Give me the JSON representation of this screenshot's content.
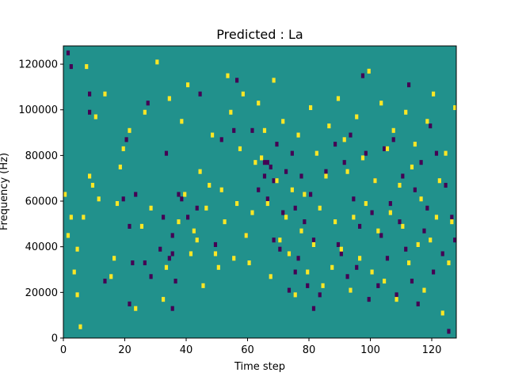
{
  "chart_data": {
    "type": "heatmap",
    "title": "Predicted : La",
    "xlabel": "Time step",
    "ylabel": "Frequency (Hz)",
    "xlim": [
      0,
      128
    ],
    "ylim": [
      0,
      128000
    ],
    "xticks": [
      0,
      20,
      40,
      60,
      80,
      100,
      120
    ],
    "yticks": [
      0,
      20000,
      40000,
      60000,
      80000,
      100000,
      120000
    ],
    "n_time_steps": 128,
    "n_freq_bins": 64,
    "freq_bin_width": 2000,
    "levels": {
      "low": 0,
      "mid": 1,
      "high": 2
    },
    "colormap": "viridis",
    "colors": {
      "low": "#440154",
      "mid": "#21918c",
      "high": "#fde725"
    },
    "background_level": 1,
    "low_cells": [
      [
        3,
        59
      ],
      [
        2,
        62
      ],
      [
        9,
        53
      ],
      [
        9,
        49
      ],
      [
        14,
        12
      ],
      [
        20,
        30
      ],
      [
        21,
        43
      ],
      [
        22,
        7
      ],
      [
        22,
        24
      ],
      [
        23,
        16
      ],
      [
        24,
        31
      ],
      [
        27,
        16
      ],
      [
        28,
        51
      ],
      [
        29,
        13
      ],
      [
        32,
        19
      ],
      [
        33,
        26
      ],
      [
        34,
        40
      ],
      [
        35,
        17
      ],
      [
        36,
        22
      ],
      [
        36,
        18
      ],
      [
        36,
        6
      ],
      [
        37,
        12
      ],
      [
        38,
        31
      ],
      [
        39,
        30
      ],
      [
        41,
        26
      ],
      [
        44,
        28
      ],
      [
        45,
        53
      ],
      [
        50,
        20
      ],
      [
        52,
        43
      ],
      [
        56,
        45
      ],
      [
        57,
        56
      ],
      [
        60,
        22
      ],
      [
        62,
        45
      ],
      [
        64,
        32
      ],
      [
        66,
        35
      ],
      [
        66,
        38
      ],
      [
        67,
        38
      ],
      [
        67,
        30
      ],
      [
        68,
        37
      ],
      [
        69,
        34
      ],
      [
        69,
        21
      ],
      [
        70,
        42
      ],
      [
        71,
        19
      ],
      [
        72,
        27
      ],
      [
        73,
        36
      ],
      [
        74,
        10
      ],
      [
        75,
        40
      ],
      [
        76,
        14
      ],
      [
        76,
        28
      ],
      [
        77,
        17
      ],
      [
        78,
        35
      ],
      [
        79,
        25
      ],
      [
        80,
        11
      ],
      [
        81,
        31
      ],
      [
        82,
        6
      ],
      [
        82,
        21
      ],
      [
        84,
        9
      ],
      [
        86,
        36
      ],
      [
        89,
        42
      ],
      [
        90,
        20
      ],
      [
        91,
        18
      ],
      [
        92,
        38
      ],
      [
        93,
        13
      ],
      [
        94,
        44
      ],
      [
        95,
        30
      ],
      [
        96,
        15
      ],
      [
        97,
        24
      ],
      [
        98,
        57
      ],
      [
        99,
        40
      ],
      [
        100,
        8
      ],
      [
        101,
        27
      ],
      [
        102,
        34
      ],
      [
        103,
        11
      ],
      [
        104,
        22
      ],
      [
        105,
        41
      ],
      [
        106,
        17
      ],
      [
        107,
        29
      ],
      [
        108,
        43
      ],
      [
        109,
        9
      ],
      [
        110,
        25
      ],
      [
        111,
        35
      ],
      [
        112,
        19
      ],
      [
        113,
        55
      ],
      [
        114,
        12
      ],
      [
        115,
        32
      ],
      [
        116,
        7
      ],
      [
        117,
        38
      ],
      [
        118,
        23
      ],
      [
        119,
        28
      ],
      [
        120,
        46
      ],
      [
        121,
        14
      ],
      [
        122,
        40
      ],
      [
        124,
        18
      ],
      [
        125,
        33
      ],
      [
        126,
        1
      ],
      [
        127,
        26
      ],
      [
        128,
        21
      ]
    ],
    "high_cells": [
      [
        1,
        31
      ],
      [
        2,
        22
      ],
      [
        3,
        26
      ],
      [
        4,
        14
      ],
      [
        5,
        9
      ],
      [
        5,
        19
      ],
      [
        6,
        2
      ],
      [
        7,
        26
      ],
      [
        8,
        59
      ],
      [
        9,
        35
      ],
      [
        10,
        33
      ],
      [
        11,
        48
      ],
      [
        12,
        30
      ],
      [
        14,
        53
      ],
      [
        16,
        13
      ],
      [
        17,
        17
      ],
      [
        18,
        29
      ],
      [
        19,
        37
      ],
      [
        20,
        41
      ],
      [
        22,
        45
      ],
      [
        24,
        6
      ],
      [
        26,
        24
      ],
      [
        27,
        49
      ],
      [
        29,
        28
      ],
      [
        31,
        60
      ],
      [
        33,
        8
      ],
      [
        34,
        15
      ],
      [
        35,
        52
      ],
      [
        38,
        25
      ],
      [
        39,
        47
      ],
      [
        40,
        31
      ],
      [
        41,
        55
      ],
      [
        42,
        18
      ],
      [
        43,
        23
      ],
      [
        44,
        21
      ],
      [
        45,
        36
      ],
      [
        46,
        11
      ],
      [
        47,
        28
      ],
      [
        48,
        33
      ],
      [
        49,
        44
      ],
      [
        50,
        18
      ],
      [
        51,
        15
      ],
      [
        52,
        32
      ],
      [
        53,
        25
      ],
      [
        54,
        57
      ],
      [
        55,
        49
      ],
      [
        56,
        17
      ],
      [
        57,
        29
      ],
      [
        58,
        41
      ],
      [
        59,
        53
      ],
      [
        60,
        22
      ],
      [
        61,
        16
      ],
      [
        62,
        27
      ],
      [
        63,
        38
      ],
      [
        64,
        51
      ],
      [
        65,
        39
      ],
      [
        66,
        45
      ],
      [
        67,
        29
      ],
      [
        68,
        13
      ],
      [
        69,
        56
      ],
      [
        70,
        34
      ],
      [
        71,
        21
      ],
      [
        72,
        47
      ],
      [
        73,
        26
      ],
      [
        74,
        18
      ],
      [
        75,
        32
      ],
      [
        76,
        9
      ],
      [
        77,
        44
      ],
      [
        78,
        23
      ],
      [
        79,
        31
      ],
      [
        80,
        14
      ],
      [
        81,
        50
      ],
      [
        82,
        20
      ],
      [
        83,
        40
      ],
      [
        84,
        28
      ],
      [
        85,
        11
      ],
      [
        86,
        35
      ],
      [
        87,
        46
      ],
      [
        88,
        15
      ],
      [
        89,
        25
      ],
      [
        90,
        52
      ],
      [
        91,
        19
      ],
      [
        92,
        43
      ],
      [
        93,
        36
      ],
      [
        94,
        10
      ],
      [
        95,
        26
      ],
      [
        96,
        48
      ],
      [
        97,
        17
      ],
      [
        98,
        39
      ],
      [
        99,
        29
      ],
      [
        100,
        58
      ],
      [
        101,
        14
      ],
      [
        102,
        34
      ],
      [
        103,
        23
      ],
      [
        104,
        51
      ],
      [
        105,
        12
      ],
      [
        106,
        41
      ],
      [
        107,
        27
      ],
      [
        108,
        45
      ],
      [
        109,
        8
      ],
      [
        110,
        33
      ],
      [
        111,
        24
      ],
      [
        112,
        49
      ],
      [
        113,
        16
      ],
      [
        114,
        37
      ],
      [
        115,
        42
      ],
      [
        116,
        20
      ],
      [
        117,
        30
      ],
      [
        118,
        10
      ],
      [
        119,
        47
      ],
      [
        120,
        21
      ],
      [
        121,
        53
      ],
      [
        122,
        26
      ],
      [
        123,
        34
      ],
      [
        124,
        5
      ],
      [
        125,
        40
      ],
      [
        126,
        16
      ],
      [
        127,
        25
      ],
      [
        128,
        50
      ]
    ]
  }
}
